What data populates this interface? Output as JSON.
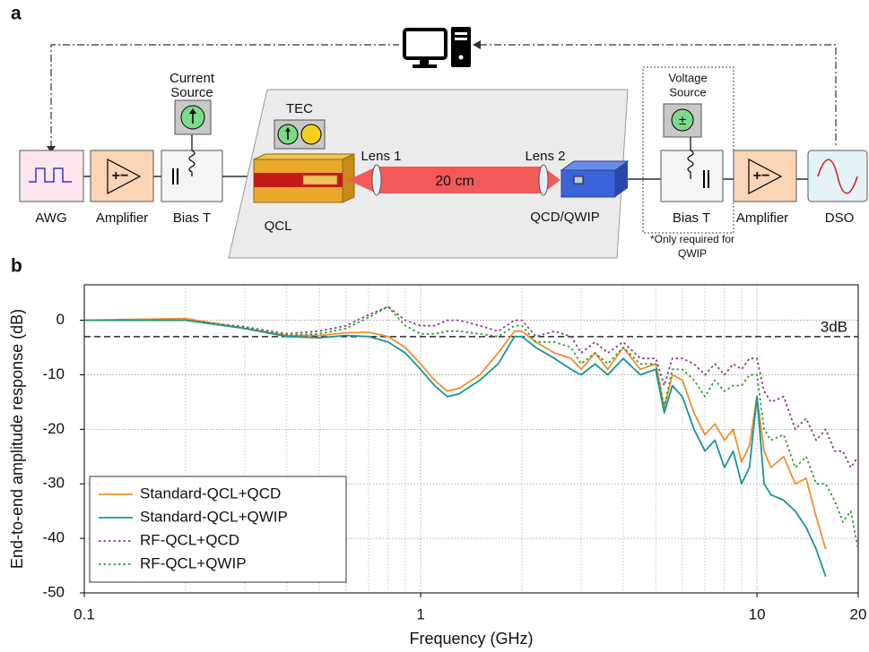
{
  "diagram": {
    "panel_label": "a",
    "awg": "AWG",
    "amplifier_left": "Amplifier",
    "bias_t_left": "Bias T",
    "current_source": [
      "Current",
      "Source"
    ],
    "tec": "TEC",
    "qcl": "QCL",
    "lens1": "Lens 1",
    "distance": "20 cm",
    "lens2": "Lens 2",
    "detector": "QCD/QWIP",
    "voltage_source": [
      "Voltage",
      "Source"
    ],
    "bias_t_right": "Bias T",
    "amplifier_right": "Amplifier",
    "dso": "DSO",
    "note": [
      "*Only required for",
      "QWIP"
    ]
  },
  "chart_data": {
    "type": "line",
    "panel_label": "b",
    "xlabel": "Frequency (GHz)",
    "ylabel": "End-to-end amplitude response (dB)",
    "xscale": "log",
    "xlim": [
      0.1,
      20
    ],
    "ylim": [
      -50,
      6.5
    ],
    "xticks": [
      0.1,
      1,
      10,
      20
    ],
    "xminorticks": [
      0.2,
      0.3,
      0.4,
      0.5,
      0.6,
      0.7,
      0.8,
      0.9,
      2,
      3,
      4,
      5,
      6,
      7,
      8,
      9
    ],
    "yticks": [
      0,
      -10,
      -20,
      -30,
      -40,
      -50
    ],
    "grid": true,
    "legend": "lower left",
    "reference_line": {
      "value": -3,
      "label": "3dB"
    },
    "x": [
      0.1,
      0.2,
      0.3,
      0.4,
      0.5,
      0.6,
      0.7,
      0.8,
      0.9,
      1.0,
      1.1,
      1.2,
      1.3,
      1.5,
      1.7,
      1.9,
      2.0,
      2.2,
      2.5,
      2.8,
      3.0,
      3.3,
      3.6,
      4.0,
      4.5,
      5.0,
      5.3,
      5.6,
      6.0,
      6.5,
      7.0,
      7.5,
      8.0,
      8.5,
      9.0,
      9.5,
      10,
      10.5,
      11,
      12,
      13,
      14,
      15,
      16,
      17,
      18,
      19,
      20
    ],
    "series": [
      {
        "name": "Standard-QCL+QCD",
        "color": "#f28e2b",
        "linestyle": "solid",
        "values": [
          0,
          0.3,
          -1.5,
          -2.8,
          -2.8,
          -2.3,
          -2.2,
          -3,
          -5,
          -8,
          -11,
          -13,
          -12.5,
          -10,
          -6,
          -2,
          -2,
          -4,
          -6,
          -7,
          -9,
          -6,
          -9,
          -5,
          -9,
          -8,
          -16,
          -10,
          -11,
          -17,
          -21,
          -19,
          -22,
          -20,
          -26,
          -23,
          -14,
          -24,
          -27,
          -25,
          -30,
          -29,
          -36,
          -42,
          null,
          null,
          null,
          null
        ]
      },
      {
        "name": "Standard-QCL+QWIP",
        "color": "#17959a",
        "linestyle": "solid",
        "values": [
          0,
          0,
          -1.5,
          -3,
          -3.2,
          -2.8,
          -3,
          -4,
          -6,
          -9,
          -12,
          -14,
          -13.5,
          -11,
          -8,
          -3,
          -3,
          -5,
          -7,
          -9,
          -10,
          -8,
          -10,
          -7,
          -10,
          -9,
          -17,
          -12,
          -14,
          -20,
          -24,
          -22,
          -27,
          -24,
          -30,
          -27,
          -14,
          -30,
          -32,
          -33,
          -35,
          -38,
          -42,
          -47,
          null,
          null,
          null,
          null
        ]
      },
      {
        "name": "RF-QCL+QCD",
        "color": "#8e3a8e",
        "linestyle": "dotted",
        "values": [
          0,
          0,
          -1.2,
          -2.5,
          -2,
          -1,
          1,
          2.5,
          0,
          -1,
          -1,
          0,
          0,
          -1,
          -2,
          0,
          0,
          -3,
          -2,
          -3,
          -6,
          -4,
          -6,
          -4,
          -7,
          -7,
          -12,
          -7,
          -7,
          -8,
          -10,
          -8,
          -10,
          -8,
          -9,
          -7,
          -7,
          -13,
          -15,
          -14,
          -20,
          -18,
          -22,
          -20,
          -24,
          -24,
          -27,
          -25
        ]
      },
      {
        "name": "RF-QCL+QWIP",
        "color": "#2ca02c",
        "linestyle": "dotted",
        "values": [
          0,
          0,
          -1.4,
          -2.8,
          -2.5,
          -1.5,
          0.5,
          2.5,
          -1,
          -2.5,
          -2.5,
          -2,
          -2,
          -2.5,
          -3,
          -1,
          -1,
          -4,
          -4,
          -5,
          -8,
          -6,
          -8,
          -5,
          -8,
          -8,
          -16,
          -9,
          -9,
          -11,
          -14,
          -11,
          -13,
          -12,
          -12,
          -10,
          -10,
          -20,
          -22,
          -21,
          -27,
          -25,
          -30,
          -30,
          -33,
          -37,
          -35,
          -42
        ]
      }
    ]
  }
}
